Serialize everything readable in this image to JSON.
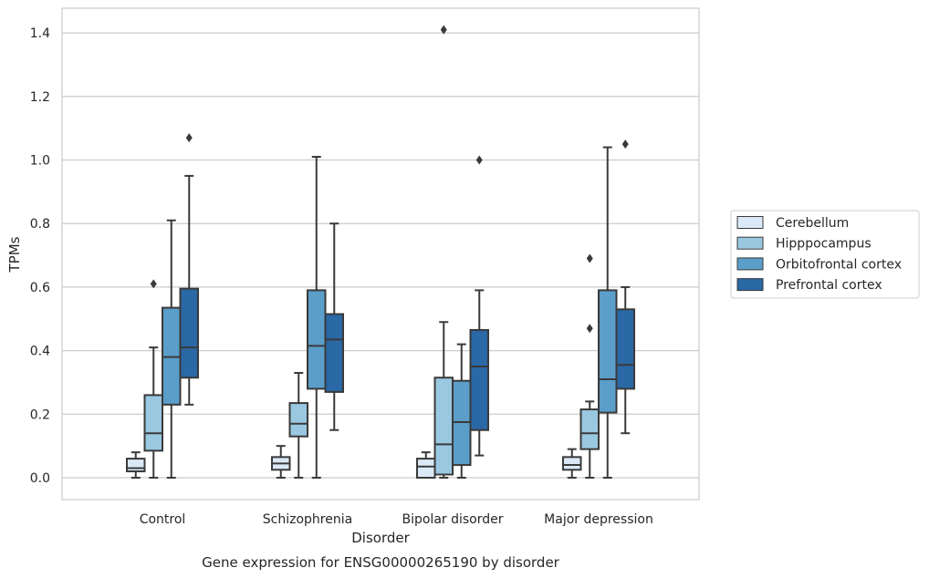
{
  "chart_data": {
    "type": "box",
    "caption": "Gene expression for ENSG00000265190 by disorder",
    "xlabel": "Disorder",
    "ylabel": "TPMs",
    "ylim": [
      -0.07,
      1.48
    ],
    "yticks": [
      "0.0",
      "0.2",
      "0.4",
      "0.6",
      "0.8",
      "1.0",
      "1.2",
      "1.4"
    ],
    "grid": "horizontal",
    "legend_position": "right",
    "categories": [
      "Control",
      "Schizophrenia",
      "Bipolar disorder",
      "Major depression"
    ],
    "series": [
      {
        "name": "Cerebellum",
        "color": "#dbe9f6",
        "boxes": [
          {
            "whisker_low": 0.0,
            "q1": 0.02,
            "median": 0.03,
            "q3": 0.06,
            "whisker_high": 0.08,
            "outliers": []
          },
          {
            "whisker_low": 0.0,
            "q1": 0.025,
            "median": 0.045,
            "q3": 0.065,
            "whisker_high": 0.1,
            "outliers": []
          },
          {
            "whisker_low": 0.0,
            "q1": 0.0,
            "median": 0.035,
            "q3": 0.06,
            "whisker_high": 0.08,
            "outliers": []
          },
          {
            "whisker_low": 0.0,
            "q1": 0.025,
            "median": 0.04,
            "q3": 0.065,
            "whisker_high": 0.09,
            "outliers": []
          }
        ]
      },
      {
        "name": "Hipppocampus",
        "color": "#9ac8e0",
        "boxes": [
          {
            "whisker_low": 0.0,
            "q1": 0.085,
            "median": 0.14,
            "q3": 0.26,
            "whisker_high": 0.41,
            "outliers": [
              0.61
            ]
          },
          {
            "whisker_low": 0.0,
            "q1": 0.13,
            "median": 0.17,
            "q3": 0.235,
            "whisker_high": 0.33,
            "outliers": []
          },
          {
            "whisker_low": 0.0,
            "q1": 0.01,
            "median": 0.105,
            "q3": 0.315,
            "whisker_high": 0.49,
            "outliers": [
              1.41
            ]
          },
          {
            "whisker_low": 0.0,
            "q1": 0.09,
            "median": 0.14,
            "q3": 0.215,
            "whisker_high": 0.24,
            "outliers": [
              0.47,
              0.69
            ]
          }
        ]
      },
      {
        "name": "Orbitofrontal cortex",
        "color": "#5a9ec9",
        "boxes": [
          {
            "whisker_low": 0.0,
            "q1": 0.23,
            "median": 0.38,
            "q3": 0.535,
            "whisker_high": 0.81,
            "outliers": []
          },
          {
            "whisker_low": 0.0,
            "q1": 0.28,
            "median": 0.415,
            "q3": 0.59,
            "whisker_high": 1.01,
            "outliers": []
          },
          {
            "whisker_low": 0.0,
            "q1": 0.04,
            "median": 0.175,
            "q3": 0.305,
            "whisker_high": 0.42,
            "outliers": []
          },
          {
            "whisker_low": 0.0,
            "q1": 0.205,
            "median": 0.31,
            "q3": 0.59,
            "whisker_high": 1.04,
            "outliers": []
          }
        ]
      },
      {
        "name": "Prefrontal cortex",
        "color": "#2a68a6",
        "boxes": [
          {
            "whisker_low": 0.23,
            "q1": 0.315,
            "median": 0.41,
            "q3": 0.595,
            "whisker_high": 0.95,
            "outliers": [
              1.07
            ]
          },
          {
            "whisker_low": 0.15,
            "q1": 0.27,
            "median": 0.435,
            "q3": 0.515,
            "whisker_high": 0.8,
            "outliers": []
          },
          {
            "whisker_low": 0.07,
            "q1": 0.15,
            "median": 0.35,
            "q3": 0.465,
            "whisker_high": 0.59,
            "outliers": [
              1.0
            ]
          },
          {
            "whisker_low": 0.14,
            "q1": 0.28,
            "median": 0.355,
            "q3": 0.53,
            "whisker_high": 0.6,
            "outliers": [
              1.05
            ]
          }
        ]
      }
    ]
  }
}
